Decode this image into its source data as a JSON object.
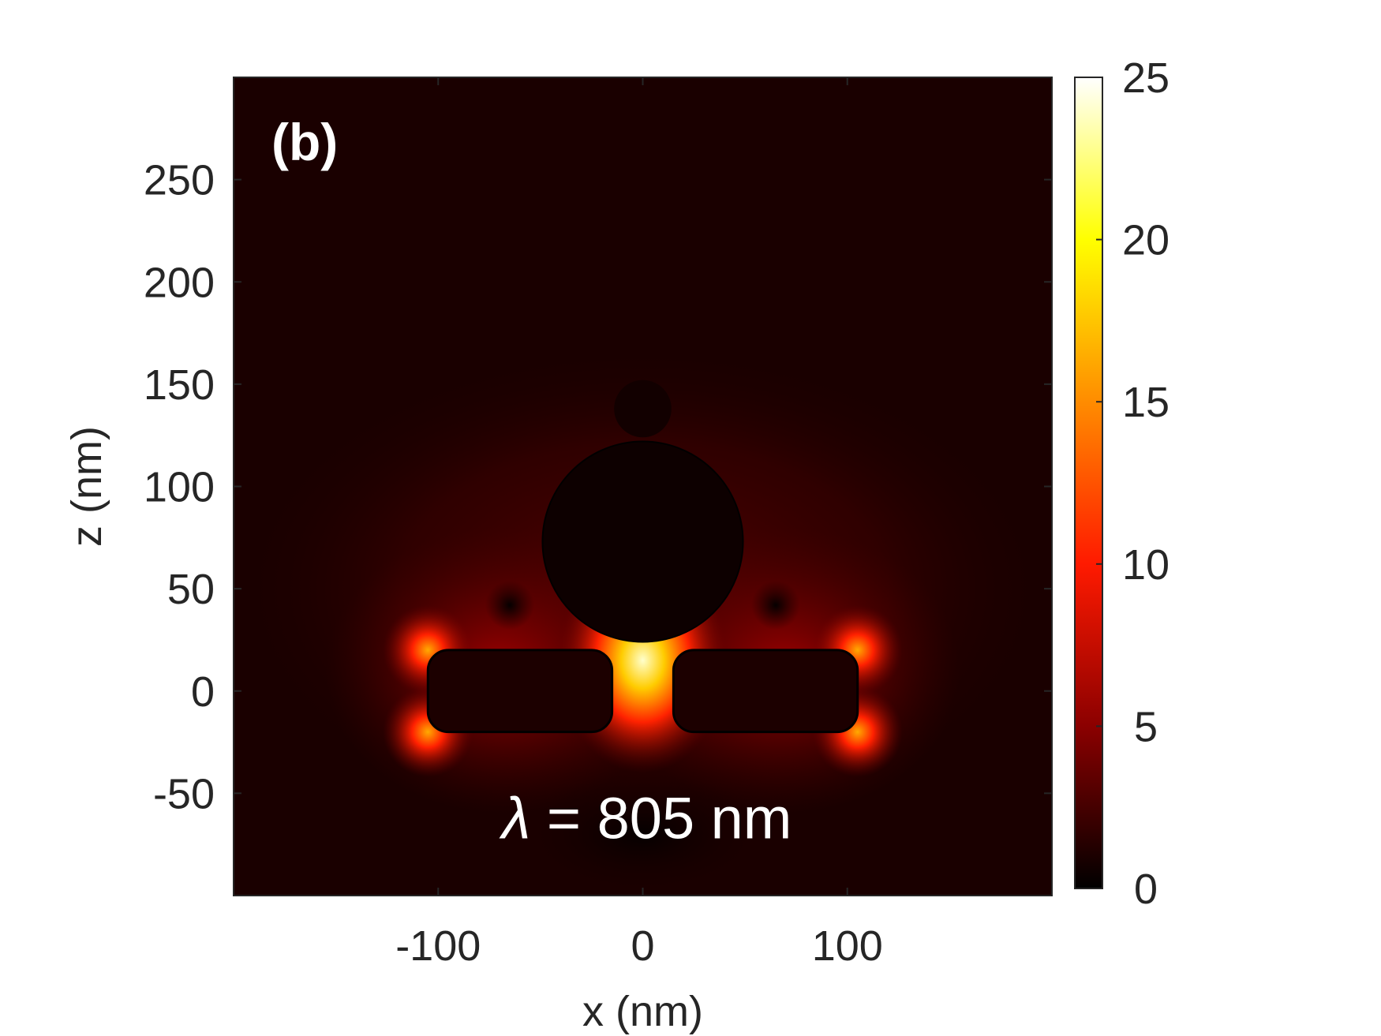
{
  "chart_data": {
    "type": "heatmap",
    "panel_label": "(b)",
    "annotation": {
      "symbol": "λ",
      "text": " = 805 nm"
    },
    "xlabel": "x (nm)",
    "ylabel": "z (nm)",
    "xlim": [
      -200,
      200
    ],
    "ylim": [
      -100,
      300
    ],
    "xticks": [
      -100,
      0,
      100
    ],
    "xtick_labels": [
      "-100",
      "0",
      "100"
    ],
    "yticks": [
      -50,
      0,
      50,
      100,
      150,
      200,
      250
    ],
    "ytick_labels": [
      "-50",
      "0",
      "50",
      "100",
      "150",
      "200",
      "250"
    ],
    "colorbar": {
      "range": [
        0,
        25
      ],
      "ticks": [
        0,
        5,
        10,
        15,
        20,
        25
      ],
      "tick_labels": [
        "0",
        "5",
        "10",
        "15",
        "20",
        "25"
      ],
      "colormap": "hot",
      "colormap_stops": [
        "#000000",
        "#8b0000",
        "#ff1a00",
        "#ff8c00",
        "#ffff00",
        "#ffffff"
      ]
    },
    "structures": [
      {
        "shape": "circle",
        "center": [
          0,
          73
        ],
        "radius": 49
      },
      {
        "shape": "rounded-rectangle",
        "x": [
          -105,
          -15
        ],
        "z": [
          -20,
          20
        ]
      },
      {
        "shape": "rounded-rectangle",
        "x": [
          15,
          105
        ],
        "z": [
          -20,
          20
        ]
      }
    ],
    "grid": false
  }
}
